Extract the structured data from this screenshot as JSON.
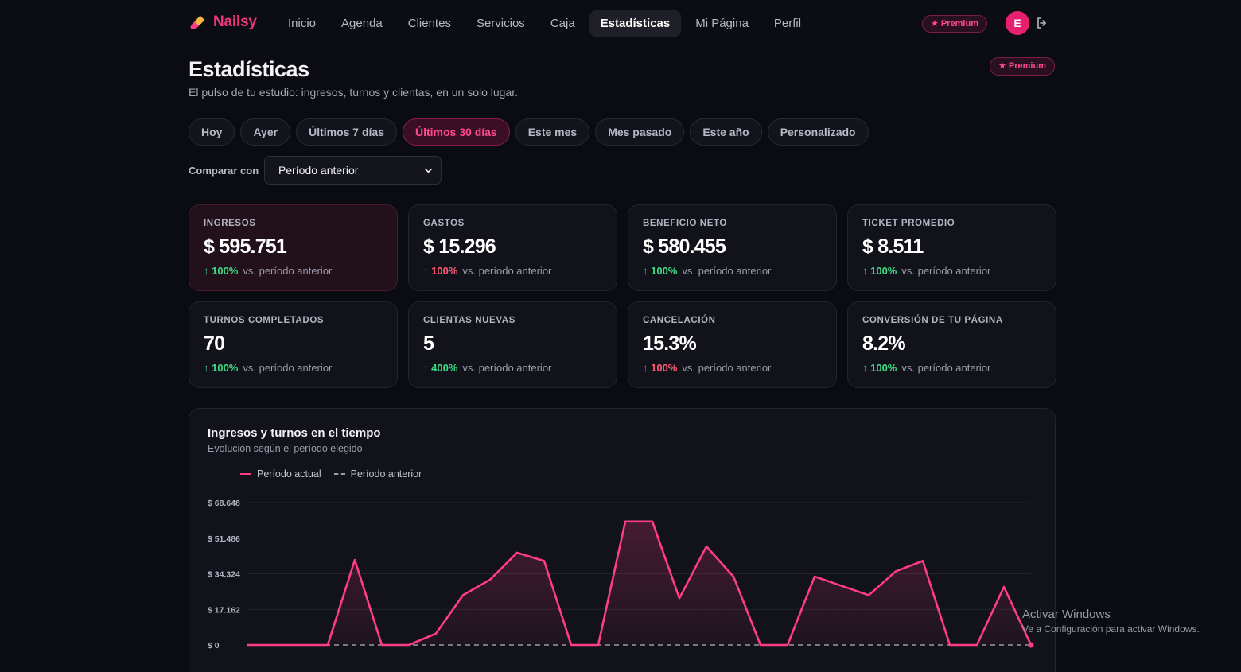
{
  "brand": {
    "name": "Nailsy",
    "icon": "nail-polish-icon"
  },
  "nav": {
    "items": [
      {
        "label": "Inicio"
      },
      {
        "label": "Agenda"
      },
      {
        "label": "Clientes"
      },
      {
        "label": "Servicios"
      },
      {
        "label": "Caja"
      },
      {
        "label": "Estadísticas",
        "active": true
      },
      {
        "label": "Mi Página"
      },
      {
        "label": "Perfil"
      }
    ],
    "premium_badge": "★ Premium",
    "avatar_initial": "E"
  },
  "header": {
    "title": "Estadísticas",
    "subtitle": "El pulso de tu estudio: ingresos, turnos y clientas, en un solo lugar.",
    "premium_badge": "★ Premium"
  },
  "ranges": [
    {
      "label": "Hoy"
    },
    {
      "label": "Ayer"
    },
    {
      "label": "Últimos 7 días"
    },
    {
      "label": "Últimos 30 días",
      "active": true
    },
    {
      "label": "Este mes"
    },
    {
      "label": "Mes pasado"
    },
    {
      "label": "Este año"
    },
    {
      "label": "Personalizado"
    }
  ],
  "compare": {
    "label": "Comparar con",
    "selected": "Período anterior"
  },
  "cards": [
    {
      "label": "INGRESOS",
      "value": "$ 595.751",
      "delta": "↑ 100%",
      "trend": "good",
      "note": "vs. período anterior"
    },
    {
      "label": "GASTOS",
      "value": "$ 15.296",
      "delta": "↑ 100%",
      "trend": "bad",
      "note": "vs. período anterior"
    },
    {
      "label": "BENEFICIO NETO",
      "value": "$ 580.455",
      "delta": "↑ 100%",
      "trend": "good",
      "note": "vs. período anterior"
    },
    {
      "label": "TICKET PROMEDIO",
      "value": "$ 8.511",
      "delta": "↑ 100%",
      "trend": "good",
      "note": "vs. período anterior"
    },
    {
      "label": "TURNOS COMPLETADOS",
      "value": "70",
      "delta": "↑ 100%",
      "trend": "good",
      "note": "vs. período anterior"
    },
    {
      "label": "CLIENTAS NUEVAS",
      "value": "5",
      "delta": "↑ 400%",
      "trend": "good",
      "note": "vs. período anterior"
    },
    {
      "label": "CANCELACIÓN",
      "value": "15.3%",
      "delta": "↑ 100%",
      "trend": "bad",
      "note": "vs. período anterior"
    },
    {
      "label": "CONVERSIÓN DE TU PÁGINA",
      "value": "8.2%",
      "delta": "↑ 100%",
      "trend": "good",
      "note": "vs. período anterior"
    }
  ],
  "chart_panel": {
    "title": "Ingresos y turnos en el tiempo",
    "subtitle": "Evolución según el período elegido"
  },
  "chart_data": {
    "type": "area",
    "ylim": [
      0,
      68648
    ],
    "ytick_labels": [
      "$ 0",
      "$ 17.162",
      "$ 34.324",
      "$ 51.486",
      "$ 68.648"
    ],
    "ytick_values": [
      0,
      17162,
      34324,
      51486,
      68648
    ],
    "grid": true,
    "legend_position": "top-left",
    "series": [
      {
        "name": "Período actual",
        "color": "#ff3d86",
        "style": "solid",
        "values": [
          0,
          0,
          0,
          0,
          41000,
          0,
          0,
          5500,
          24000,
          31500,
          44500,
          40500,
          0,
          0,
          59500,
          59500,
          22500,
          47500,
          33000,
          0,
          0,
          33000,
          28500,
          24000,
          35500,
          40500,
          0,
          0,
          28000,
          0
        ]
      },
      {
        "name": "Período anterior",
        "color": "#9a9aa8",
        "style": "dashed",
        "values": [
          0,
          0,
          0,
          0,
          0,
          0,
          0,
          0,
          0,
          0,
          0,
          0,
          0,
          0,
          0,
          0,
          0,
          0,
          0,
          0,
          0,
          0,
          0,
          0,
          0,
          0,
          0,
          0,
          0,
          0
        ]
      }
    ]
  },
  "watermark": {
    "line1": "Activar Windows",
    "line2": "Ve a Configuración para activar Windows."
  }
}
